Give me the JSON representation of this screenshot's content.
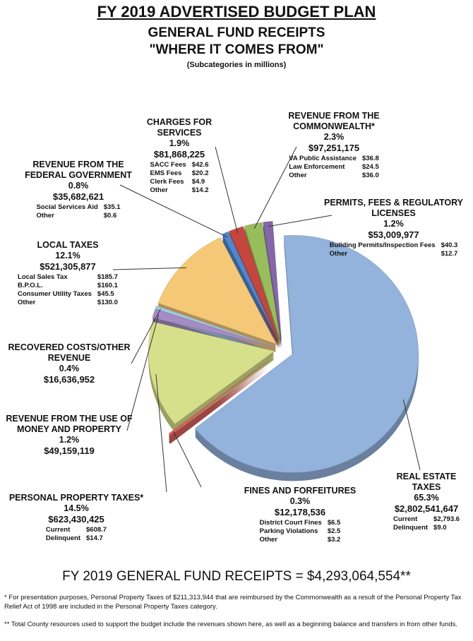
{
  "title": "FY 2019 ADVERTISED BUDGET PLAN",
  "chart_data": {
    "type": "pie",
    "title": "GENERAL FUND RECEIPTS",
    "subtitle": "\"WHERE IT COMES FROM\"",
    "note": "(Subcategories in millions)",
    "categories": [
      "REAL ESTATE TAXES",
      "FINES AND FORFEITURES",
      "PERSONAL PROPERTY TAXES*",
      "REVENUE FROM THE USE OF MONEY AND PROPERTY",
      "RECOVERED COSTS/OTHER REVENUE",
      "LOCAL TAXES",
      "REVENUE FROM THE FEDERAL GOVERNMENT",
      "CHARGES FOR SERVICES",
      "REVENUE FROM THE COMMONWEALTH*",
      "PERMITS, FEES & REGULATORY LICENSES"
    ],
    "values": [
      65.3,
      0.3,
      14.5,
      1.2,
      0.4,
      12.1,
      0.8,
      1.9,
      2.3,
      1.2
    ],
    "value_labels": [
      "65.3%",
      "0.3%",
      "14.5%",
      "1.2%",
      "0.4%",
      "12.1%",
      "0.8%",
      "1.9%",
      "2.3%",
      "1.2%"
    ],
    "amounts": [
      "$2,802,541,647",
      "$12,178,536",
      "$623,430,425",
      "$49,159,119",
      "$16,636,952",
      "$521,305,877",
      "$35,682,621",
      "$81,868,225",
      "$97,251,175",
      "$53,009,977"
    ],
    "colors": [
      "#93b2dc",
      "#d9605c",
      "#d6e08a",
      "#a58cc4",
      "#a2cbe4",
      "#f5c877",
      "#4f86cc",
      "#c4473f",
      "#98bd5c",
      "#8567a8"
    ],
    "subcategories": [
      [
        [
          "Current",
          "$2,793.6"
        ],
        [
          "Delinquent",
          "$9.0"
        ]
      ],
      [
        [
          "District Court Fines",
          "$6.5"
        ],
        [
          "Parking Violations",
          "$2.5"
        ],
        [
          "Other",
          "$3.2"
        ]
      ],
      [
        [
          "Current",
          "$608.7"
        ],
        [
          "Delinquent",
          "$14.7"
        ]
      ],
      [],
      [],
      [
        [
          "Local Sales Tax",
          "$185.7"
        ],
        [
          "B.P.O.L.",
          "$160.1"
        ],
        [
          "Consumer Utility Taxes",
          "$45.5"
        ],
        [
          "Other",
          "$130.0"
        ]
      ],
      [
        [
          "Social Services Aid",
          "$35.1"
        ],
        [
          "Other",
          "$0.6"
        ]
      ],
      [
        [
          "SACC Fees",
          "$42.6"
        ],
        [
          "EMS Fees",
          "$20.2"
        ],
        [
          "Clerk Fees",
          "$4.9"
        ],
        [
          "Other",
          "$14.2"
        ]
      ],
      [
        [
          "VA Public Assistance",
          "$36.8"
        ],
        [
          "Law Enforcement",
          "$24.5"
        ],
        [
          "Other",
          "$36.0"
        ]
      ],
      [
        [
          "Building Permits/Inspection Fees",
          "$40.3"
        ],
        [
          "Other",
          "$12.7"
        ]
      ]
    ]
  },
  "total": "FY 2019 GENERAL FUND RECEIPTS = $4,293,064,554**",
  "footnotes": [
    "* For presentation purposes, Personal Property Taxes of $211,313,944 that are reimbursed by the Commonwealth as a result of the Personal Property Tax Relief Act of 1998 are included in the Personal Property Taxes category.",
    "** Total County resources used to support the budget include the revenues shown here, as well as a beginning balance and transfers in from other funds."
  ]
}
